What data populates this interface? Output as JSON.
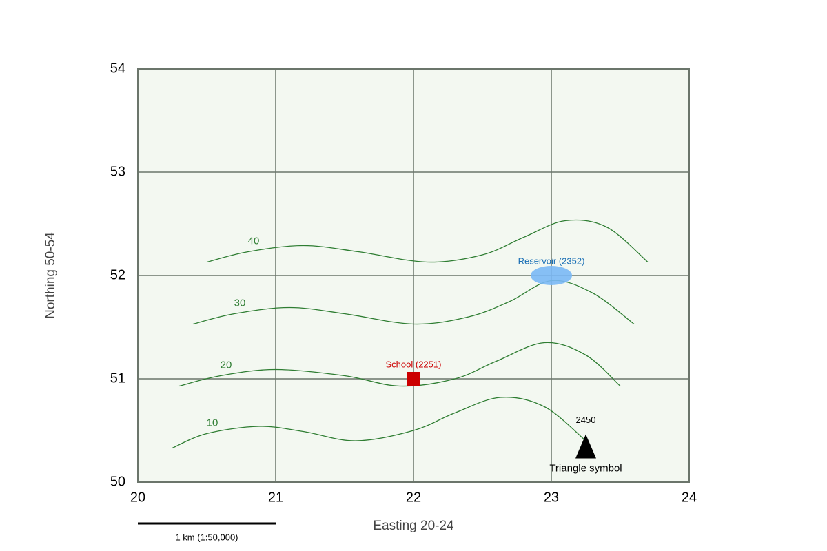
{
  "chart_data": {
    "type": "map",
    "xlabel": "Easting 20-24",
    "ylabel": "Northing 50-54",
    "xlim": [
      20,
      24
    ],
    "ylim": [
      50,
      54
    ],
    "xticks": [
      20,
      21,
      22,
      23,
      24
    ],
    "yticks": [
      50,
      51,
      52,
      53,
      54
    ],
    "grid": true,
    "background": "#f3f8f1",
    "grid_color": "#6b756b",
    "contour_color": "#2e7d32",
    "series": [
      {
        "name": "40",
        "x": [
          20.5,
          20.8,
          21.2,
          21.6,
          22.1,
          22.5,
          22.8,
          23.1,
          23.4,
          23.7
        ],
        "values": [
          52.13,
          52.23,
          52.29,
          52.23,
          52.13,
          52.2,
          52.37,
          52.53,
          52.47,
          52.13
        ]
      },
      {
        "name": "30",
        "x": [
          20.4,
          20.7,
          21.1,
          21.5,
          22,
          22.4,
          22.7,
          23,
          23.3,
          23.6
        ],
        "values": [
          51.53,
          51.63,
          51.69,
          51.63,
          51.53,
          51.6,
          51.75,
          51.95,
          51.83,
          51.53
        ]
      },
      {
        "name": "20",
        "x": [
          20.3,
          20.6,
          21,
          21.5,
          21.9,
          22.3,
          22.6,
          22.95,
          23.25,
          23.5
        ],
        "values": [
          50.93,
          51.03,
          51.09,
          51.03,
          50.93,
          51,
          51.17,
          51.35,
          51.23,
          50.93
        ]
      },
      {
        "name": "10",
        "x": [
          20.25,
          20.5,
          20.88,
          21.2,
          21.58,
          22,
          22.3,
          22.63,
          22.95,
          23.25
        ],
        "values": [
          50.33,
          50.47,
          50.54,
          50.49,
          50.4,
          50.5,
          50.67,
          50.82,
          50.73,
          50.4
        ]
      }
    ],
    "features": [
      {
        "label": "School (2251)",
        "x": 22,
        "y": 51,
        "shape": "square",
        "color": "#cc0000"
      },
      {
        "label": "Reservoir (2352)",
        "x": 23,
        "y": 52,
        "shape": "ellipse",
        "color": "#1a6fb5",
        "fill": "#7ab8f5"
      },
      {
        "label": "2450",
        "caption": "Triangle symbol",
        "x": 23.25,
        "y": 50.35,
        "shape": "triangle",
        "color": "#000000"
      }
    ],
    "scale_bar": {
      "label": "1 km (1:50,000)",
      "length": 1
    }
  }
}
